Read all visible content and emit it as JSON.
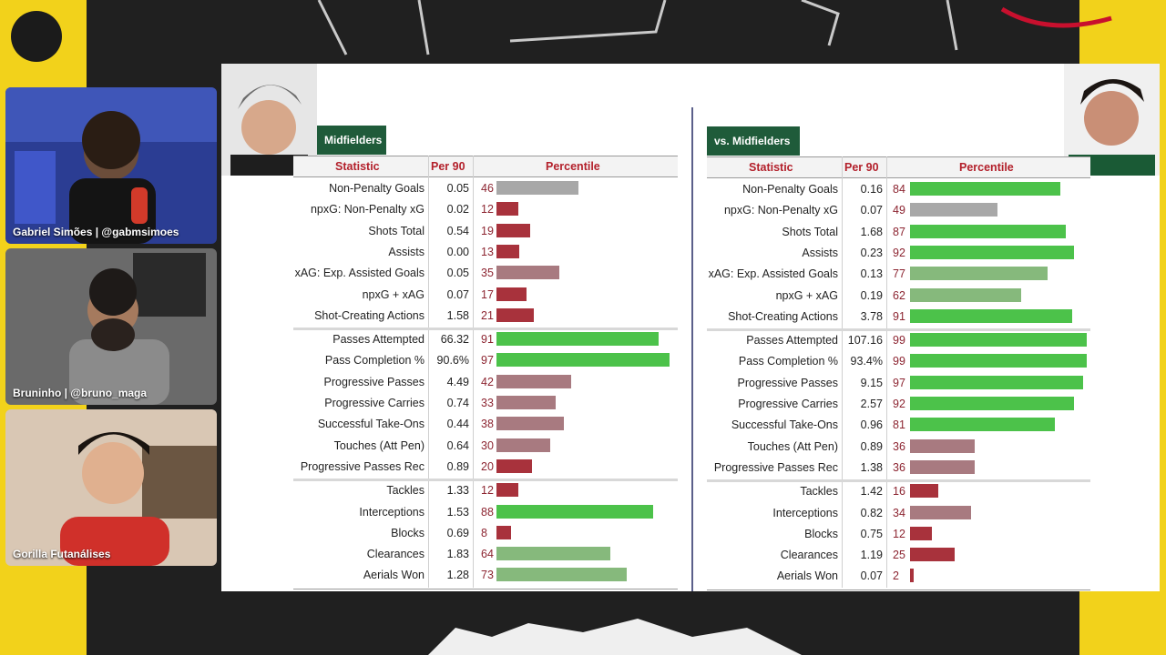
{
  "cams": [
    {
      "name": "Gabriel Simões | @gabmsimoes",
      "bg": "#2d3c8f"
    },
    {
      "name": "Bruninho | @bruno_maga",
      "bg": "#5a5a5a"
    },
    {
      "name": "Gorilla Futanálises",
      "bg": "#c9a98a"
    }
  ],
  "left": {
    "tab": "Midfielders",
    "headers": {
      "stat": "Statistic",
      "per90": "Per 90",
      "pct": "Percentile"
    },
    "groups": [
      [
        {
          "stat": "Non-Penalty Goals",
          "per90": "0.05",
          "pct": 46
        },
        {
          "stat": "npxG: Non-Penalty xG",
          "per90": "0.02",
          "pct": 12
        },
        {
          "stat": "Shots Total",
          "per90": "0.54",
          "pct": 19
        },
        {
          "stat": "Assists",
          "per90": "0.00",
          "pct": 13
        },
        {
          "stat": "xAG: Exp. Assisted Goals",
          "per90": "0.05",
          "pct": 35
        },
        {
          "stat": "npxG + xAG",
          "per90": "0.07",
          "pct": 17
        },
        {
          "stat": "Shot-Creating Actions",
          "per90": "1.58",
          "pct": 21
        }
      ],
      [
        {
          "stat": "Passes Attempted",
          "per90": "66.32",
          "pct": 91
        },
        {
          "stat": "Pass Completion %",
          "per90": "90.6%",
          "pct": 97
        },
        {
          "stat": "Progressive Passes",
          "per90": "4.49",
          "pct": 42
        },
        {
          "stat": "Progressive Carries",
          "per90": "0.74",
          "pct": 33
        },
        {
          "stat": "Successful Take-Ons",
          "per90": "0.44",
          "pct": 38
        },
        {
          "stat": "Touches (Att Pen)",
          "per90": "0.64",
          "pct": 30
        },
        {
          "stat": "Progressive Passes Rec",
          "per90": "0.89",
          "pct": 20
        }
      ],
      [
        {
          "stat": "Tackles",
          "per90": "1.33",
          "pct": 12
        },
        {
          "stat": "Interceptions",
          "per90": "1.53",
          "pct": 88
        },
        {
          "stat": "Blocks",
          "per90": "0.69",
          "pct": 8
        },
        {
          "stat": "Clearances",
          "per90": "1.83",
          "pct": 64
        },
        {
          "stat": "Aerials Won",
          "per90": "1.28",
          "pct": 73
        }
      ]
    ]
  },
  "right": {
    "tab": "vs. Midfielders",
    "headers": {
      "stat": "Statistic",
      "per90": "Per 90",
      "pct": "Percentile"
    },
    "groups": [
      [
        {
          "stat": "Non-Penalty Goals",
          "per90": "0.16",
          "pct": 84
        },
        {
          "stat": "npxG: Non-Penalty xG",
          "per90": "0.07",
          "pct": 49
        },
        {
          "stat": "Shots Total",
          "per90": "1.68",
          "pct": 87
        },
        {
          "stat": "Assists",
          "per90": "0.23",
          "pct": 92
        },
        {
          "stat": "xAG: Exp. Assisted Goals",
          "per90": "0.13",
          "pct": 77
        },
        {
          "stat": "npxG + xAG",
          "per90": "0.19",
          "pct": 62
        },
        {
          "stat": "Shot-Creating Actions",
          "per90": "3.78",
          "pct": 91
        }
      ],
      [
        {
          "stat": "Passes Attempted",
          "per90": "107.16",
          "pct": 99
        },
        {
          "stat": "Pass Completion %",
          "per90": "93.4%",
          "pct": 99
        },
        {
          "stat": "Progressive Passes",
          "per90": "9.15",
          "pct": 97
        },
        {
          "stat": "Progressive Carries",
          "per90": "2.57",
          "pct": 92
        },
        {
          "stat": "Successful Take-Ons",
          "per90": "0.96",
          "pct": 81
        },
        {
          "stat": "Touches (Att Pen)",
          "per90": "0.89",
          "pct": 36
        },
        {
          "stat": "Progressive Passes Rec",
          "per90": "1.38",
          "pct": 36
        }
      ],
      [
        {
          "stat": "Tackles",
          "per90": "1.42",
          "pct": 16
        },
        {
          "stat": "Interceptions",
          "per90": "0.82",
          "pct": 34
        },
        {
          "stat": "Blocks",
          "per90": "0.75",
          "pct": 12
        },
        {
          "stat": "Clearances",
          "per90": "1.19",
          "pct": 25
        },
        {
          "stat": "Aerials Won",
          "per90": "0.07",
          "pct": 2
        }
      ]
    ]
  },
  "colors": {
    "high": "#4cc24a",
    "midHigh": "#86b97c",
    "mid": "#a8a8a8",
    "midLow": "#a87a80",
    "low": "#a8323c"
  }
}
